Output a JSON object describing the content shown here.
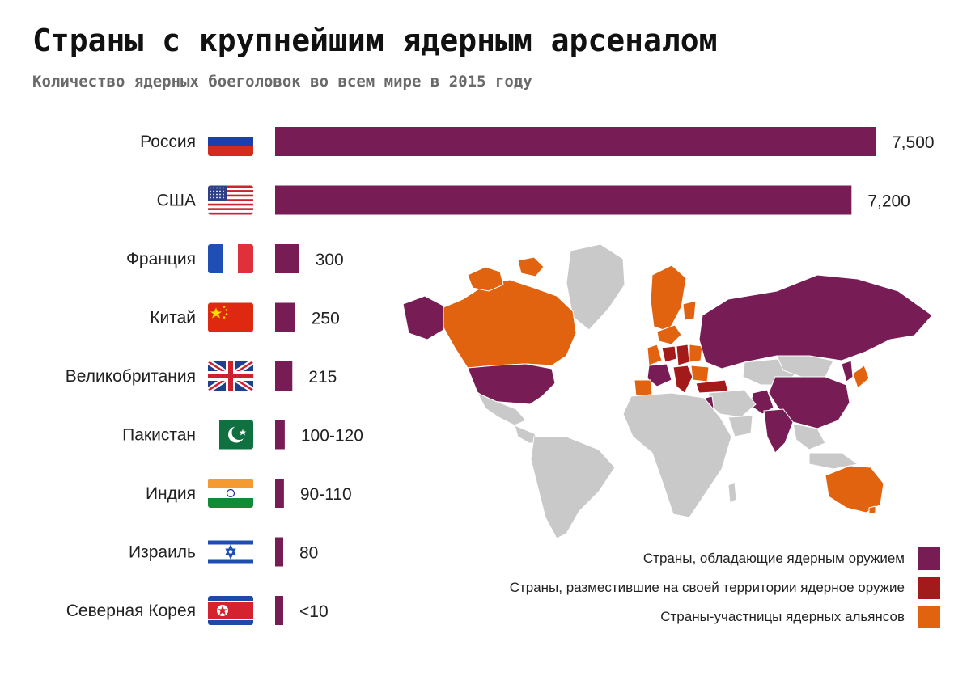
{
  "title": "Страны с крупнейшим ядерным арсеналом",
  "subtitle": "Количество ядерных боеголовок во всем мире в 2015 году",
  "colors": {
    "nuclear_state": "#781c56",
    "hosting_state": "#a31a1a",
    "alliance_member": "#e1620f",
    "other_land": "#c9c9c9"
  },
  "chart_data": {
    "type": "bar",
    "orientation": "horizontal",
    "title": "Страны с крупнейшим ядерным арсеналом",
    "subtitle": "Количество ядерных боеголовок во всем мире в 2015 году",
    "categories": [
      "Россия",
      "США",
      "Франция",
      "Китай",
      "Великобритания",
      "Пакистан",
      "Индия",
      "Израиль",
      "Северная Корея"
    ],
    "values": [
      7500,
      7200,
      300,
      250,
      215,
      120,
      110,
      80,
      10
    ],
    "value_labels": [
      "7,500",
      "7,200",
      "300",
      "250",
      "215",
      "100-120",
      "90-110",
      "80",
      "<10"
    ],
    "flag_icons": [
      "russia-flag-icon",
      "usa-flag-icon",
      "france-flag-icon",
      "china-flag-icon",
      "uk-flag-icon",
      "pakistan-flag-icon",
      "india-flag-icon",
      "israel-flag-icon",
      "north-korea-flag-icon"
    ],
    "bar_color": "#781c56",
    "grid": false,
    "axis_labels_shown": false
  },
  "map": {
    "icon": "world-map-icon"
  },
  "legend": {
    "placement": "bottom-right",
    "items": [
      {
        "label": "Страны, обладающие ядерным оружием",
        "color": "#781c56"
      },
      {
        "label": "Страны, разместившие на своей территории ядерное оружие",
        "color": "#a31a1a"
      },
      {
        "label": "Страны-участницы ядерных альянсов",
        "color": "#e1620f"
      }
    ]
  }
}
